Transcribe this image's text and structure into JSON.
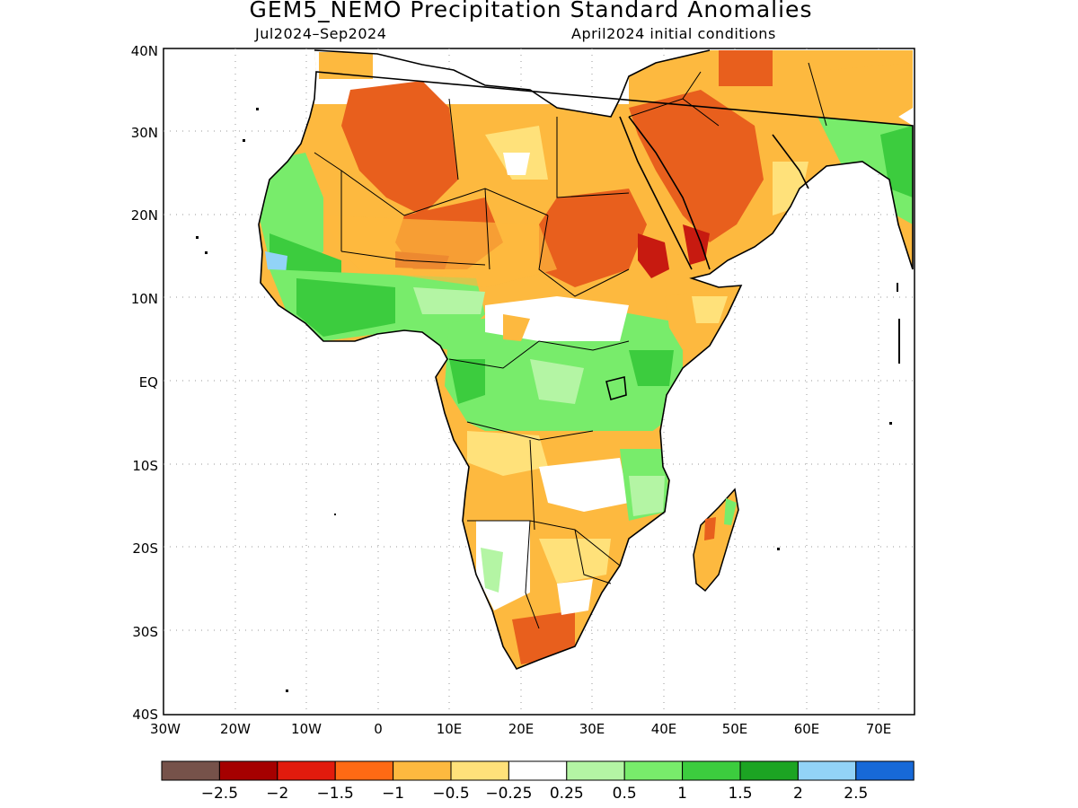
{
  "title": "GEM5_NEMO Precipitation Standard Anomalies",
  "subtitle_left": "Jul2024–Sep2024",
  "subtitle_right": "April2024 initial conditions",
  "lat_labels": [
    "40N",
    "30N",
    "20N",
    "10N",
    "EQ",
    "10S",
    "20S",
    "30S",
    "40S"
  ],
  "lon_labels": [
    "30W",
    "20W",
    "10W",
    "0",
    "10E",
    "20E",
    "30E",
    "40E",
    "50E",
    "60E",
    "70E"
  ],
  "legend": {
    "colors": [
      "#76524a",
      "#a50000",
      "#e21b0d",
      "#ff6a14",
      "#fdb93f",
      "#ffe17a",
      "#ffffff",
      "#b4f5a4",
      "#78ec6b",
      "#3ccc3e",
      "#1ca423",
      "#92d3f7",
      "#1769d8"
    ],
    "labels": [
      "−2.5",
      "−2",
      "−1.5",
      "−1",
      "−0.5",
      "−0.25",
      "0.25",
      "0.5",
      "1",
      "1.5",
      "2",
      "2.5"
    ]
  },
  "colors": {
    "dry_strong": "#e85f1d",
    "dry_moderate": "#fdb93f",
    "dry_weak": "#ffe17a",
    "dry_extreme": "#c71a10",
    "wet_weak": "#b4f5a4",
    "wet_moderate": "#78ec6b",
    "wet_strong": "#3ccc3e",
    "wet_very_strong": "#1ca423",
    "wet_extreme": "#92d3f7"
  }
}
